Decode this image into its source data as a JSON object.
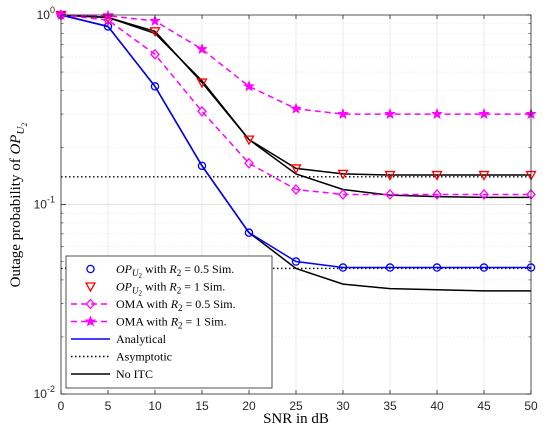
{
  "chart_data": {
    "type": "line",
    "xlabel": "SNR in dB",
    "ylabel_prefix": "Outage probability of",
    "ylabel_var": "OP",
    "ylabel_sub": "U",
    "ylabel_subsub": "2",
    "y_scale": "log",
    "xlim": [
      0,
      50
    ],
    "ylim": [
      0.01,
      1
    ],
    "grid": true,
    "legend_position": "bottom-left",
    "x_ticks": [
      "0",
      "5",
      "10",
      "15",
      "20",
      "25",
      "30",
      "35",
      "40",
      "45",
      "50"
    ],
    "y_tick_labels": [
      {
        "base": "10",
        "exp": "0",
        "value": 1
      },
      {
        "base": "10",
        "exp": "-1",
        "value": 0.1
      },
      {
        "base": "10",
        "exp": "-2",
        "value": 0.01
      }
    ],
    "x": [
      0,
      5,
      10,
      15,
      20,
      25,
      30,
      35,
      40,
      45,
      50
    ],
    "series": [
      {
        "name": "OP_U2 with R2 = 0.5 Sim.",
        "legend": {
          "var": "OP",
          "sub": "U",
          "subsub": "2",
          "mid": " with ",
          "r": "R",
          "rsub": "2",
          "tail": " = 0.5 Sim."
        },
        "color": "#0000ff",
        "line": "none",
        "marker": "circle",
        "values": [
          1.0,
          0.87,
          0.42,
          0.16,
          0.071,
          0.05,
          0.0465,
          0.0465,
          0.0465,
          0.0465,
          0.0465
        ]
      },
      {
        "name": "OP_U2 with R2 = 1 Sim.",
        "legend": {
          "var": "OP",
          "sub": "U",
          "subsub": "2",
          "mid": " with ",
          "r": "R",
          "rsub": "2",
          "tail": " = 1 Sim."
        },
        "color": "#ff0000",
        "line": "none",
        "marker": "triangle-down",
        "values": [
          1.0,
          0.97,
          0.82,
          0.44,
          0.22,
          0.155,
          0.145,
          0.143,
          0.143,
          0.143,
          0.143
        ]
      },
      {
        "name": "OMA with R2 = 0.5 Sim.",
        "legend": {
          "var": "",
          "sub": "",
          "subsub": "",
          "mid": "OMA with ",
          "r": "R",
          "rsub": "2",
          "tail": " = 0.5 Sim."
        },
        "color": "#ff00ff",
        "line": "dashed",
        "marker": "diamond",
        "values": [
          1.0,
          0.94,
          0.62,
          0.31,
          0.165,
          0.12,
          0.113,
          0.113,
          0.113,
          0.113,
          0.113
        ]
      },
      {
        "name": "OMA with R2 = 1 Sim.",
        "legend": {
          "var": "",
          "sub": "",
          "subsub": "",
          "mid": "OMA with ",
          "r": "R",
          "rsub": "2",
          "tail": " = 1 Sim."
        },
        "color": "#ff00ff",
        "line": "dashed",
        "marker": "star",
        "values": [
          1.0,
          0.99,
          0.93,
          0.66,
          0.42,
          0.32,
          0.3,
          0.3,
          0.3,
          0.3,
          0.3
        ]
      }
    ],
    "analytical_curves": [
      {
        "color": "#0000ff",
        "values": [
          1.0,
          0.87,
          0.42,
          0.16,
          0.071,
          0.05,
          0.0465,
          0.0465,
          0.0465,
          0.0465,
          0.0465
        ]
      },
      {
        "color": "#000000",
        "values": [
          1.0,
          0.97,
          0.82,
          0.44,
          0.22,
          0.155,
          0.145,
          0.143,
          0.143,
          0.143,
          0.143
        ]
      }
    ],
    "no_itc_curves": [
      {
        "values": [
          1.0,
          0.97,
          0.8,
          0.45,
          0.22,
          0.145,
          0.12,
          0.112,
          0.11,
          0.109,
          0.109
        ]
      },
      {
        "values": [
          1.0,
          0.87,
          0.42,
          0.16,
          0.071,
          0.046,
          0.038,
          0.036,
          0.0355,
          0.035,
          0.035
        ]
      }
    ],
    "asymptotes": [
      0.14,
      0.046
    ],
    "line_legend": [
      {
        "label": "Analytical",
        "color": "#0000ff",
        "dash": "solid"
      },
      {
        "label": "Asymptotic",
        "color": "#000000",
        "dash": "dotted"
      },
      {
        "label": "No ITC",
        "color": "#000000",
        "dash": "solid"
      }
    ]
  }
}
